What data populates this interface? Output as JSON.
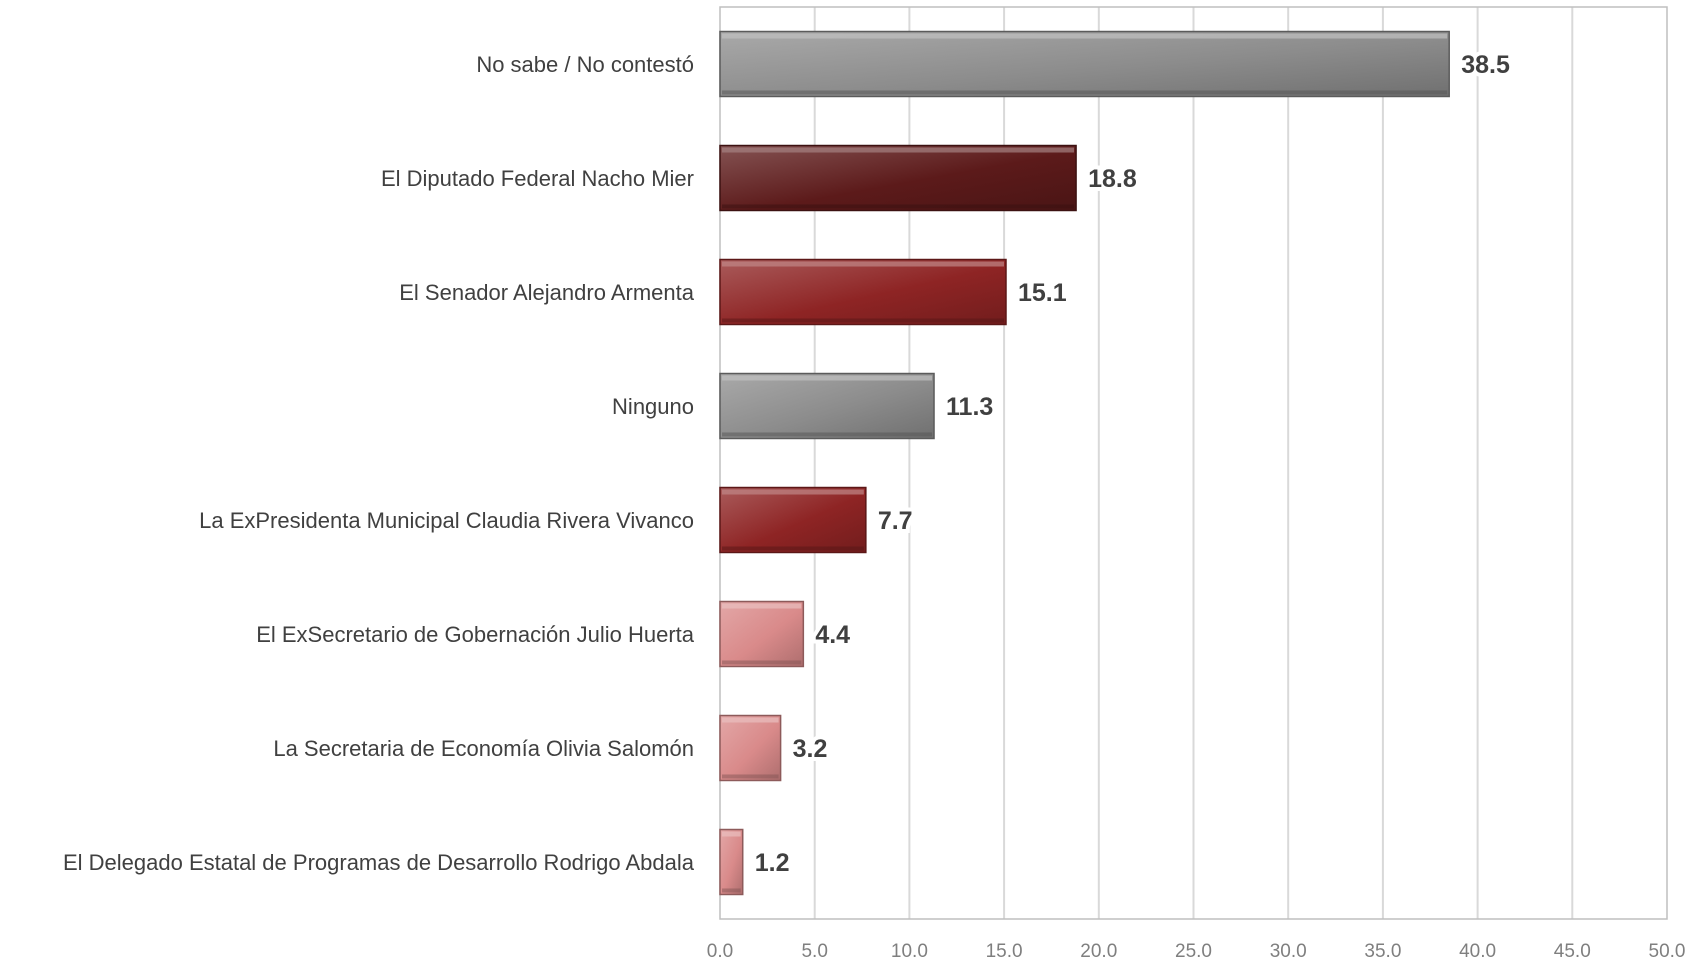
{
  "chart_data": {
    "type": "bar",
    "orientation": "horizontal",
    "title": "",
    "xlabel": "",
    "ylabel": "",
    "categories": [
      "No sabe / No contestó",
      "El Diputado Federal Nacho Mier",
      "El Senador Alejandro Armenta",
      "Ninguno",
      "La ExPresidenta Municipal Claudia Rivera Vivanco",
      "El ExSecretario de Gobernación Julio Huerta",
      "La Secretaria de Economía Olivia Salomón",
      "El Delegado Estatal de Programas de Desarrollo Rodrigo Abdala"
    ],
    "values": [
      38.5,
      18.8,
      15.1,
      11.3,
      7.7,
      4.4,
      3.2,
      1.2
    ],
    "value_labels": [
      "38.5",
      "18.8",
      "15.1",
      "11.3",
      "7.7",
      "4.4",
      "3.2",
      "1.2"
    ],
    "bar_colors": [
      "#8c8c8c",
      "#5c1a1a",
      "#8e2424",
      "#8c8c8c",
      "#8e2424",
      "#d98a8a",
      "#d98a8a",
      "#d98a8a"
    ],
    "xlim": [
      0,
      50
    ],
    "xticks": [
      "0.0",
      "5.0",
      "10.0",
      "15.0",
      "20.0",
      "25.0",
      "30.0",
      "35.0",
      "40.0",
      "45.0",
      "50.0"
    ],
    "grid": true,
    "legend": "none"
  }
}
